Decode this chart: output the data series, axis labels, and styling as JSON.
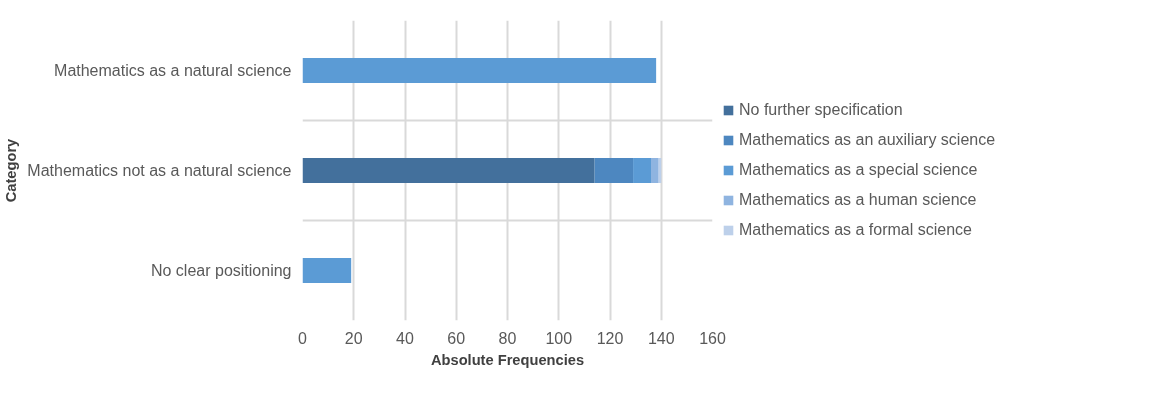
{
  "chart_data": {
    "type": "bar",
    "orientation": "horizontal",
    "stacked": true,
    "categories": [
      "Mathematics as a natural science",
      "Mathematics not as a natural science",
      "No clear positioning"
    ],
    "series": [
      {
        "name": "No further specification",
        "color": "#43709c",
        "values": [
          0,
          114,
          0
        ]
      },
      {
        "name": "Mathematics as an auxiliary science",
        "color": "#4d87c0",
        "values": [
          0,
          15,
          0
        ]
      },
      {
        "name": "Mathematics as a special science",
        "color": "#5b9bd5",
        "values": [
          138,
          7,
          19
        ]
      },
      {
        "name": "Mathematics as a human science",
        "color": "#8fb4e0",
        "values": [
          0,
          3,
          0
        ]
      },
      {
        "name": "Mathematics as a formal science",
        "color": "#bdd0ea",
        "values": [
          0,
          1,
          0
        ]
      }
    ],
    "xlim": [
      0,
      160
    ],
    "xticks": [
      0,
      20,
      40,
      60,
      80,
      100,
      120,
      140,
      160
    ],
    "xlabel": "Absolute Frequencies",
    "ylabel": "Category",
    "grid": true,
    "legend": "right"
  }
}
